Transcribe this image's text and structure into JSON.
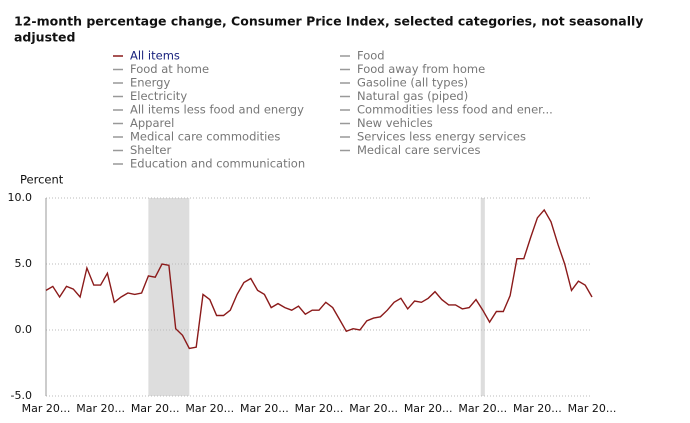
{
  "chart_data": {
    "type": "line",
    "title": "12-month percentage change, Consumer Price Index, selected categories, not seasonally adjusted",
    "title_lines": [
      "12-month percentage change, Consumer Price Index, selected categories, not seasonally",
      "adjusted"
    ],
    "y_label": "Percent",
    "categories": [
      "Mar 20...",
      null,
      null,
      null,
      null,
      null,
      null,
      null,
      "Mar 20...",
      null,
      null,
      null,
      null,
      null,
      null,
      null,
      "Mar 20...",
      null,
      null,
      null,
      null,
      null,
      null,
      null,
      "Mar 20...",
      null,
      null,
      null,
      null,
      null,
      null,
      null,
      "Mar 20...",
      null,
      null,
      null,
      null,
      null,
      null,
      null,
      "Mar 20...",
      null,
      null,
      null,
      null,
      null,
      null,
      null,
      "Mar 20...",
      null,
      null,
      null,
      null,
      null,
      null,
      null,
      "Mar 20...",
      null,
      null,
      null,
      null,
      null,
      null,
      null,
      "Mar 20...",
      null,
      null,
      null,
      null,
      null,
      null,
      null,
      "Mar 20...",
      null,
      null,
      null,
      null,
      null,
      null,
      null,
      "Mar 20..."
    ],
    "series": [
      {
        "name": "All items",
        "color": "#8b1a1a",
        "values": [
          3.0,
          3.3,
          2.5,
          3.3,
          3.1,
          2.5,
          4.7,
          3.4,
          3.4,
          4.3,
          2.1,
          2.5,
          2.8,
          2.7,
          2.8,
          4.1,
          4.0,
          5.0,
          4.9,
          0.1,
          -0.4,
          -1.4,
          -1.3,
          2.7,
          2.3,
          1.1,
          1.1,
          1.5,
          2.7,
          3.6,
          3.9,
          3.0,
          2.7,
          1.7,
          2.0,
          1.7,
          1.5,
          1.8,
          1.2,
          1.5,
          1.5,
          2.1,
          1.7,
          0.8,
          -0.1,
          0.1,
          0.0,
          0.7,
          0.9,
          1.0,
          1.5,
          2.1,
          2.4,
          1.6,
          2.2,
          2.1,
          2.4,
          2.9,
          2.3,
          1.9,
          1.9,
          1.6,
          1.7,
          2.3,
          1.5,
          0.6,
          1.4,
          1.4,
          2.6,
          5.4,
          5.4,
          7.0,
          8.5,
          9.1,
          8.2,
          6.5,
          5.0,
          3.0,
          3.7,
          3.4,
          2.5
        ]
      }
    ],
    "legend_left": [
      "Food at home",
      "Energy",
      "Electricity",
      "All items less food and energy",
      "Apparel",
      "Medical care commodities",
      "Shelter",
      "Education and communication"
    ],
    "legend_right": [
      "Food",
      "Food away from home",
      "Gasoline (all types)",
      "Natural gas (piped)",
      "Commodities less food and ener...",
      "New vehicles",
      "Services less energy services",
      "Medical care services"
    ],
    "recessions": [
      {
        "start": 15,
        "end": 21
      },
      {
        "start": 63.7,
        "end": 64.3
      }
    ],
    "ylim": [
      -5,
      10
    ],
    "yticks": [
      {
        "value": -5,
        "label": "-5.0"
      },
      {
        "value": 0,
        "label": "0.0"
      },
      {
        "value": 5,
        "label": "5.0"
      },
      {
        "value": 10,
        "label": "10.0"
      }
    ],
    "grid": true
  }
}
